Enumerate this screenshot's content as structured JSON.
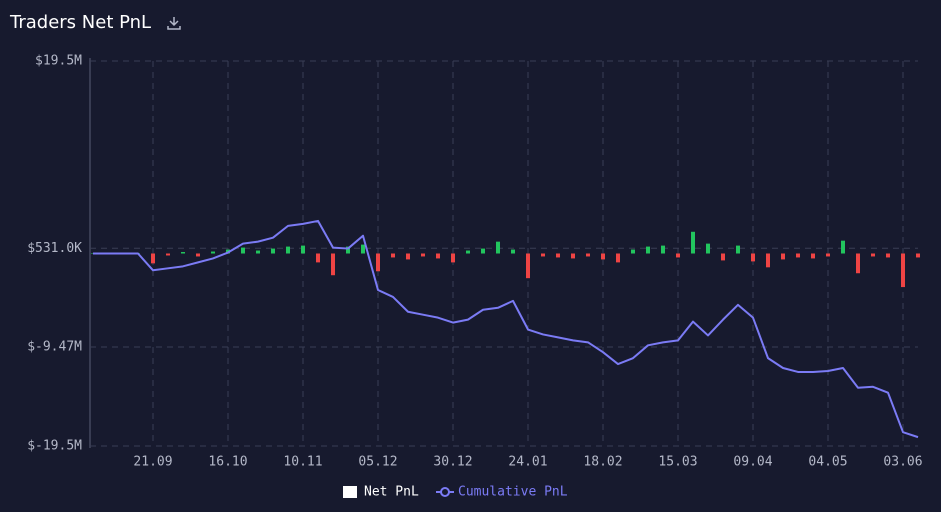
{
  "chart_data": {
    "type": "bar-line",
    "title": "Traders Net PnL",
    "categories": [
      null,
      null,
      null,
      null,
      "21.09",
      null,
      null,
      null,
      null,
      "16.10",
      null,
      null,
      null,
      null,
      "10.11",
      null,
      null,
      null,
      null,
      "05.12",
      null,
      null,
      null,
      null,
      "30.12",
      null,
      null,
      null,
      null,
      "24.01",
      null,
      null,
      null,
      null,
      "18.02",
      null,
      null,
      null,
      null,
      "15.03",
      null,
      null,
      null,
      null,
      "09.04",
      null,
      null,
      null,
      null,
      "04.05",
      null,
      null,
      null,
      null,
      "03.06",
      null
    ],
    "series": [
      {
        "name": "Net PnL",
        "color": "#ffffff",
        "positive_color": "#22c55e",
        "negative_color": "#ef4444",
        "values": [
          50000,
          -30000,
          20000,
          40000,
          -1000000,
          -200000,
          150000,
          -300000,
          200000,
          400000,
          600000,
          300000,
          500000,
          700000,
          800000,
          -900000,
          -2200000,
          700000,
          900000,
          -1800000,
          -400000,
          -600000,
          -300000,
          -500000,
          -900000,
          300000,
          500000,
          1200000,
          400000,
          -2500000,
          -300000,
          -400000,
          -500000,
          -300000,
          -600000,
          -900000,
          400000,
          700000,
          800000,
          -400000,
          2200000,
          1000000,
          -700000,
          800000,
          -800000,
          -1400000,
          -600000,
          -400000,
          -500000,
          -300000,
          1300000,
          -2000000,
          -300000,
          -400000,
          -3400000,
          -400000
        ]
      },
      {
        "name": "Cumulative PnL",
        "color": "#7b7bf5",
        "values": [
          0,
          0,
          0,
          0,
          -1700000,
          -1500000,
          -1300000,
          -900000,
          -500000,
          100000,
          1000000,
          1200000,
          1600000,
          2800000,
          3000000,
          3300000,
          600000,
          500000,
          1800000,
          -3700000,
          -4400000,
          -5900000,
          -6200000,
          -6500000,
          -7000000,
          -6700000,
          -5700000,
          -5500000,
          -4800000,
          -7700000,
          -8200000,
          -8500000,
          -8800000,
          -9000000,
          -10000000,
          -11200000,
          -10600000,
          -9300000,
          -9000000,
          -8800000,
          -6900000,
          -8300000,
          -6700000,
          -5200000,
          -6500000,
          -10600000,
          -11600000,
          -12000000,
          -12000000,
          -11900000,
          -11600000,
          -13600000,
          -13500000,
          -14100000,
          -18100000,
          -18600000
        ]
      }
    ],
    "ylim": [
      -19500000,
      19500000
    ],
    "yticks": [
      {
        "value": -19500000,
        "label": "$-19.5M"
      },
      {
        "value": -9470000,
        "label": "$-9.47M"
      },
      {
        "value": 531000,
        "label": "$531.0K"
      },
      {
        "value": 19500000,
        "label": "$19.5M"
      }
    ],
    "grid": true
  }
}
